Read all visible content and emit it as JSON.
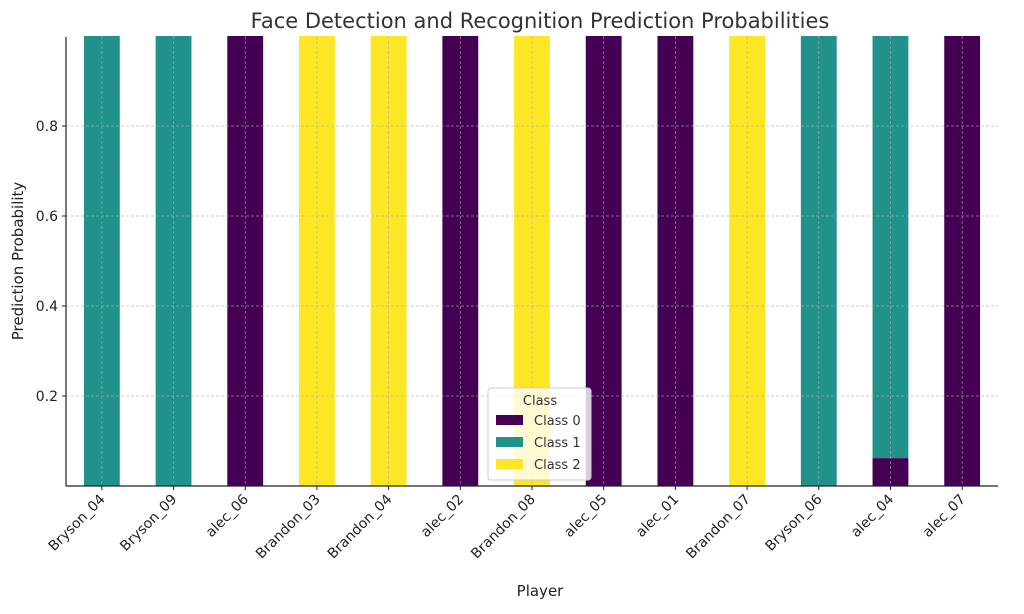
{
  "chart_data": {
    "type": "bar",
    "stacked": true,
    "title": "Face Detection and Recognition Prediction Probabilities",
    "xlabel": "Player",
    "ylabel": "Prediction Probability",
    "ylim": [
      0,
      1.0
    ],
    "yticks": [
      0.2,
      0.4,
      0.6,
      0.8
    ],
    "ytick_labels": [
      "0.2",
      "0.4",
      "0.6",
      "0.8"
    ],
    "grid": true,
    "categories": [
      "Bryson_04",
      "Bryson_09",
      "alec_06",
      "Brandon_03",
      "Brandon_04",
      "alec_02",
      "Brandon_08",
      "alec_05",
      "alec_01",
      "Brandon_07",
      "Bryson_06",
      "alec_04",
      "alec_07"
    ],
    "series": [
      {
        "name": "Class 0",
        "color": "#440154",
        "values": [
          0,
          0,
          1,
          0,
          0,
          1,
          0,
          1,
          1,
          0,
          0,
          0.062,
          1
        ]
      },
      {
        "name": "Class 1",
        "color": "#21918c",
        "values": [
          1,
          1,
          0,
          0,
          0,
          0,
          0,
          0,
          0,
          0,
          1,
          0.938,
          0
        ]
      },
      {
        "name": "Class 2",
        "color": "#fde725",
        "values": [
          0,
          0,
          0,
          1,
          1,
          0,
          1,
          0,
          0,
          1,
          0,
          0,
          0
        ]
      }
    ],
    "legend": {
      "title": "Class",
      "placement": "lower-center"
    }
  }
}
